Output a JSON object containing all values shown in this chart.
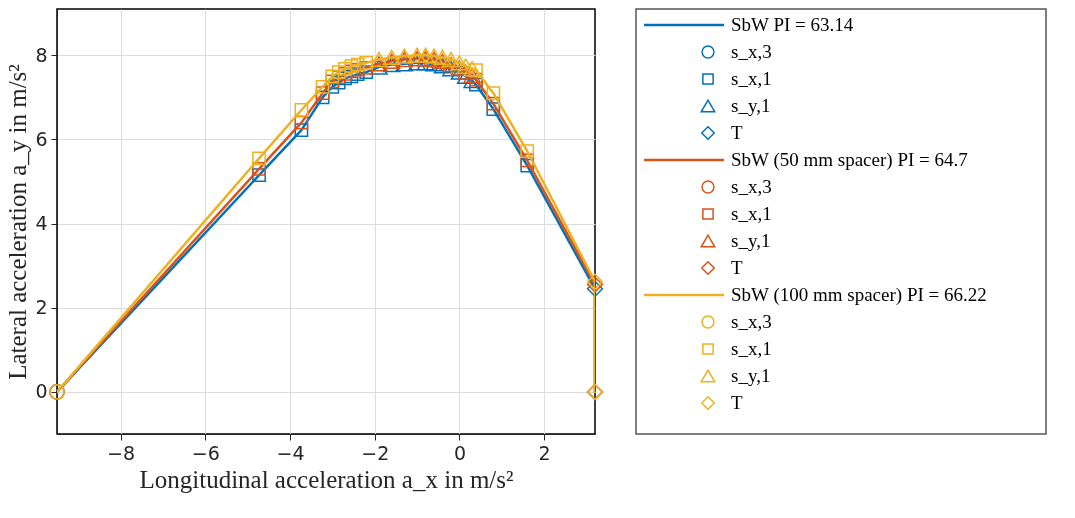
{
  "chart_data": {
    "type": "line",
    "xlabel": "Longitudinal acceleration a_x in m/s²",
    "ylabel": "Lateral acceleration a_y in m/s²",
    "x": [
      -9.5,
      -4.73,
      -3.73,
      -3.23,
      -3.0,
      -2.85,
      -2.7,
      -2.55,
      -2.4,
      -2.2,
      -1.9,
      -1.6,
      -1.3,
      -1.0,
      -0.8,
      -0.6,
      -0.4,
      -0.2,
      0.0,
      0.15,
      0.3,
      0.39,
      0.8,
      1.6,
      3.2,
      3.2
    ],
    "xlim": [
      -9.5,
      3.2
    ],
    "xticks": [
      -8,
      -6,
      -4,
      -2,
      0,
      2
    ],
    "ylim": [
      -1,
      9.1
    ],
    "yticks": [
      0,
      2,
      4,
      6,
      8
    ],
    "grid": true,
    "legend": "right",
    "line_style": "solid",
    "series": [
      {
        "name": "SbW PI = 63.14",
        "color": "#0072bd",
        "values": [
          0,
          5.15,
          6.22,
          7.0,
          7.25,
          7.35,
          7.45,
          7.5,
          7.55,
          7.6,
          7.72,
          7.78,
          7.8,
          7.82,
          7.82,
          7.8,
          7.75,
          7.68,
          7.6,
          7.5,
          7.4,
          7.3,
          6.72,
          5.38,
          2.45,
          0
        ]
      },
      {
        "name": "s_x,3",
        "type": "scatter",
        "marker": "circle",
        "color": "#0072bd",
        "x": [
          -9.5
        ],
        "values": [
          0
        ]
      },
      {
        "name": "s_x,1",
        "type": "scatter",
        "marker": "square",
        "color": "#0072bd",
        "x": [
          -4.73,
          -3.73,
          -3.23,
          -3.0,
          -2.85,
          -2.7,
          -2.55,
          -2.4,
          -2.2,
          0.39,
          0.8,
          1.6
        ],
        "values": [
          5.15,
          6.22,
          7.0,
          7.25,
          7.35,
          7.45,
          7.5,
          7.55,
          7.6,
          7.3,
          6.72,
          5.38
        ]
      },
      {
        "name": "s_y,1",
        "type": "scatter",
        "marker": "triangle",
        "color": "#0072bd",
        "x": [
          -1.9,
          -1.6,
          -1.3,
          -1.0,
          -0.8,
          -0.6,
          -0.4,
          -0.2,
          0.0,
          0.15,
          0.3
        ],
        "values": [
          7.72,
          7.78,
          7.8,
          7.82,
          7.82,
          7.8,
          7.75,
          7.68,
          7.6,
          7.5,
          7.4
        ]
      },
      {
        "name": "T",
        "type": "scatter",
        "marker": "diamond",
        "color": "#0072bd",
        "x": [
          3.2,
          3.2
        ],
        "values": [
          2.45,
          0
        ]
      },
      {
        "name": "SbW (50 mm spacer) PI = 64.7",
        "color": "#d95319",
        "values": [
          0,
          5.3,
          6.4,
          7.1,
          7.38,
          7.48,
          7.56,
          7.62,
          7.66,
          7.7,
          7.8,
          7.86,
          7.9,
          7.92,
          7.92,
          7.9,
          7.85,
          7.78,
          7.7,
          7.6,
          7.52,
          7.42,
          6.85,
          5.5,
          2.55,
          0
        ]
      },
      {
        "name": "s_x,3",
        "type": "scatter",
        "marker": "circle",
        "color": "#d95319",
        "x": [
          -9.5
        ],
        "values": [
          0
        ]
      },
      {
        "name": "s_x,1",
        "type": "scatter",
        "marker": "square",
        "color": "#d95319",
        "x": [
          -4.73,
          -3.73,
          -3.23,
          -3.0,
          -2.85,
          -2.7,
          -2.55,
          -2.4,
          -2.2,
          0.39,
          0.8,
          1.6
        ],
        "values": [
          5.3,
          6.4,
          7.1,
          7.38,
          7.48,
          7.56,
          7.62,
          7.66,
          7.7,
          7.42,
          6.85,
          5.5
        ]
      },
      {
        "name": "s_y,1",
        "type": "scatter",
        "marker": "triangle",
        "color": "#d95319",
        "x": [
          -1.9,
          -1.6,
          -1.3,
          -1.0,
          -0.8,
          -0.6,
          -0.4,
          -0.2,
          0.0,
          0.15,
          0.3
        ],
        "values": [
          7.8,
          7.86,
          7.9,
          7.92,
          7.92,
          7.9,
          7.85,
          7.78,
          7.7,
          7.6,
          7.52
        ]
      },
      {
        "name": "T",
        "type": "scatter",
        "marker": "diamond",
        "color": "#d95319",
        "x": [
          3.2,
          3.2
        ],
        "values": [
          2.55,
          0
        ]
      },
      {
        "name": "SbW (100 mm spacer) PI = 66.22",
        "color": "#edb120",
        "values": [
          0,
          5.55,
          6.7,
          7.25,
          7.5,
          7.6,
          7.68,
          7.74,
          7.78,
          7.82,
          7.9,
          7.95,
          7.98,
          8.0,
          8.0,
          7.98,
          7.95,
          7.9,
          7.82,
          7.74,
          7.68,
          7.65,
          7.1,
          5.72,
          2.62,
          0
        ]
      },
      {
        "name": "s_x,3",
        "type": "scatter",
        "marker": "circle",
        "color": "#edb120",
        "x": [
          -9.5
        ],
        "values": [
          0
        ]
      },
      {
        "name": "s_x,1",
        "type": "scatter",
        "marker": "square",
        "color": "#edb120",
        "x": [
          -4.73,
          -3.73,
          -3.23,
          -3.0,
          -2.85,
          -2.7,
          -2.55,
          -2.4,
          -2.2,
          0.39,
          0.8,
          1.6
        ],
        "values": [
          5.55,
          6.7,
          7.25,
          7.5,
          7.6,
          7.68,
          7.74,
          7.78,
          7.82,
          7.65,
          7.1,
          5.72
        ]
      },
      {
        "name": "s_y,1",
        "type": "scatter",
        "marker": "triangle",
        "color": "#edb120",
        "x": [
          -1.9,
          -1.6,
          -1.3,
          -1.0,
          -0.8,
          -0.6,
          -0.4,
          -0.2,
          0.0,
          0.15,
          0.3
        ],
        "values": [
          7.9,
          7.95,
          7.98,
          8.0,
          8.0,
          7.98,
          7.95,
          7.9,
          7.82,
          7.74,
          7.68
        ]
      },
      {
        "name": "T",
        "type": "scatter",
        "marker": "diamond",
        "color": "#edb120",
        "x": [
          3.2,
          3.2
        ],
        "values": [
          2.62,
          0
        ]
      }
    ]
  }
}
